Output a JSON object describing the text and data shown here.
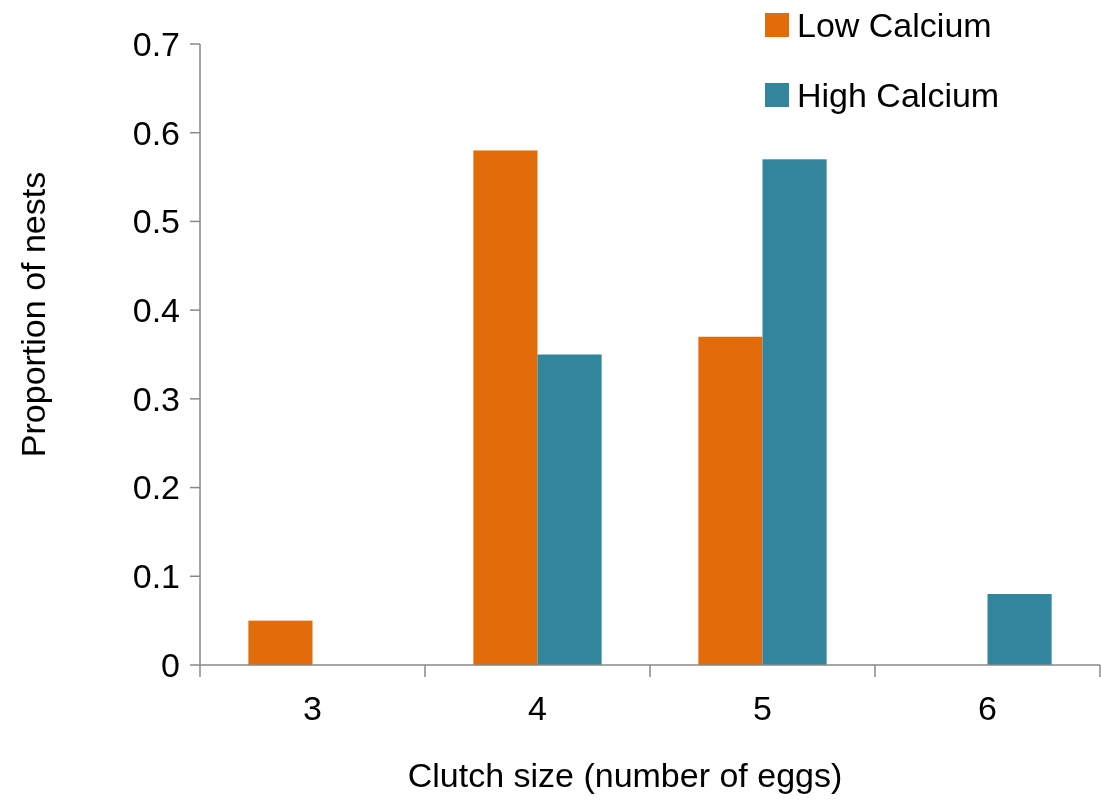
{
  "chart_data": {
    "type": "bar",
    "xlabel": "Clutch size (number of eggs)",
    "ylabel": "Proportion of nests",
    "categories": [
      "3",
      "4",
      "5",
      "6"
    ],
    "series": [
      {
        "name": "Low Calcium",
        "color": "#e36c0a",
        "values": [
          0.05,
          0.58,
          0.37,
          0
        ]
      },
      {
        "name": "High Calcium",
        "color": "#31859c",
        "values": [
          0,
          0.35,
          0.57,
          0.08
        ]
      }
    ],
    "ylim": [
      0,
      0.7
    ],
    "yticks": [
      0,
      0.1,
      0.2,
      0.3,
      0.4,
      0.5,
      0.6,
      0.7
    ],
    "grid": false,
    "legend": "top right"
  }
}
